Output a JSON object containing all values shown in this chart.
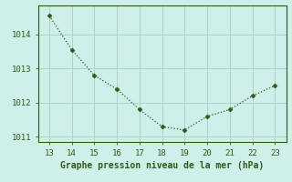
{
  "x": [
    13,
    14,
    15,
    16,
    17,
    18,
    19,
    20,
    21,
    22,
    23
  ],
  "y": [
    1014.55,
    1013.55,
    1012.8,
    1012.4,
    1011.8,
    1011.3,
    1011.2,
    1011.6,
    1011.8,
    1012.2,
    1012.5
  ],
  "line_color": "#2d5a1b",
  "marker": "D",
  "marker_size": 2.5,
  "bg_color": "#cff0e8",
  "grid_color": "#aad4cc",
  "xlabel": "Graphe pression niveau de la mer (hPa)",
  "xlabel_color": "#2d5a1b",
  "xlabel_fontsize": 7,
  "tick_color": "#2d5a1b",
  "tick_fontsize": 6.5,
  "xlim": [
    12.5,
    23.5
  ],
  "ylim": [
    1010.85,
    1014.85
  ],
  "yticks": [
    1011,
    1012,
    1013,
    1014
  ],
  "xticks": [
    13,
    14,
    15,
    16,
    17,
    18,
    19,
    20,
    21,
    22,
    23
  ]
}
